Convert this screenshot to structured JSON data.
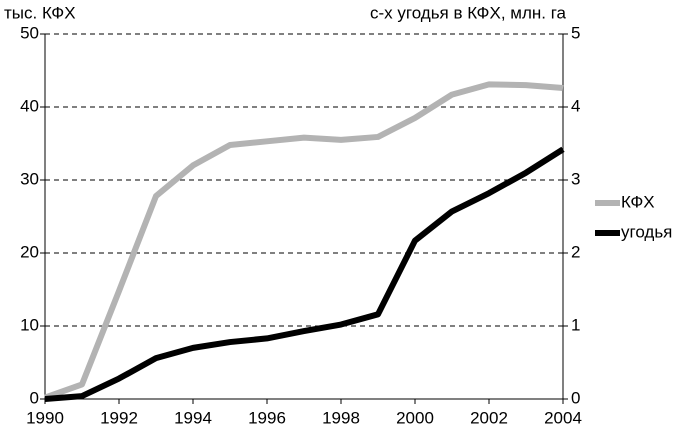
{
  "chart_data": {
    "type": "line",
    "y_label": "тыс. КФХ",
    "y2_label": "с-х угодья в КФХ, млн. га",
    "x": [
      1990,
      1991,
      1992,
      1993,
      1994,
      1995,
      1996,
      1997,
      1998,
      1999,
      2000,
      2001,
      2002,
      2003,
      2004
    ],
    "series": [
      {
        "name": "КФХ",
        "color": "#b3b3b3",
        "values": [
          0.2,
          2,
          14.8,
          27.8,
          32,
          34.8,
          35.3,
          35.8,
          35.5,
          35.9,
          38.5,
          41.7,
          43.1,
          43,
          42.6
        ]
      },
      {
        "name": "угодья",
        "color": "#000000",
        "axis": "y2",
        "values": [
          0,
          0.04,
          0.28,
          0.56,
          0.7,
          0.78,
          0.83,
          0.93,
          1.02,
          1.16,
          2.17,
          2.57,
          2.82,
          3.1,
          3.42
        ]
      }
    ],
    "xlim": [
      1990,
      2004
    ],
    "xticks": [
      1990,
      1992,
      1994,
      1996,
      1998,
      2000,
      2002,
      2004
    ],
    "ylim": [
      0,
      50
    ],
    "yticks": [
      0,
      10,
      20,
      30,
      40,
      50
    ],
    "y2lim": [
      0,
      5
    ],
    "y2ticks": [
      0,
      1,
      2,
      3,
      4,
      5
    ],
    "grid": true,
    "legend": "right"
  }
}
